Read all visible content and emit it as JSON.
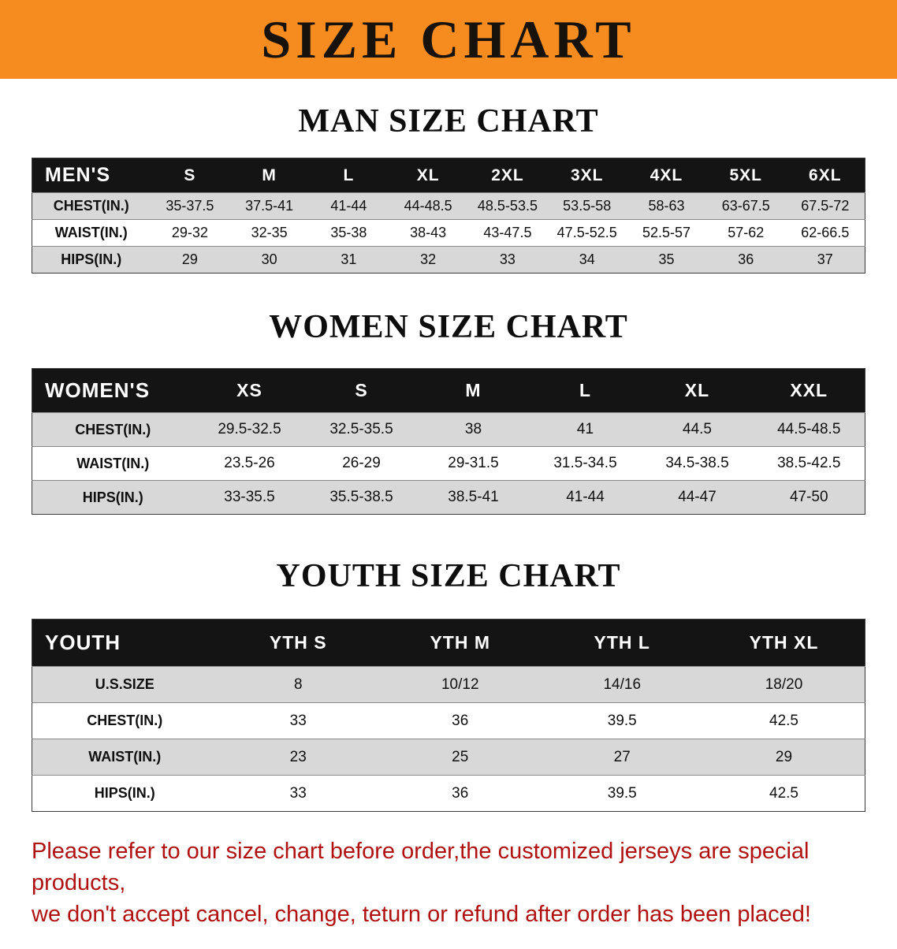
{
  "banner": {
    "title": "SIZE CHART"
  },
  "colors": {
    "banner_bg": "#f68b1f",
    "header_bg": "#141414",
    "row_alt_bg": "#d8d8d8",
    "footer_text": "#b01111"
  },
  "sections": [
    {
      "heading": "MAN SIZE CHART",
      "table": {
        "header": [
          "MEN'S",
          "S",
          "M",
          "L",
          "XL",
          "2XL",
          "3XL",
          "4XL",
          "5XL",
          "6XL"
        ],
        "rows": [
          [
            "CHEST(IN.)",
            "35-37.5",
            "37.5-41",
            "41-44",
            "44-48.5",
            "48.5-53.5",
            "53.5-58",
            "58-63",
            "63-67.5",
            "67.5-72"
          ],
          [
            "WAIST(IN.)",
            "29-32",
            "32-35",
            "35-38",
            "38-43",
            "43-47.5",
            "47.5-52.5",
            "52.5-57",
            "57-62",
            "62-66.5"
          ],
          [
            "HIPS(IN.)",
            "29",
            "30",
            "31",
            "32",
            "33",
            "34",
            "35",
            "36",
            "37"
          ]
        ]
      }
    },
    {
      "heading": "WOMEN SIZE CHART",
      "table": {
        "header": [
          "WOMEN'S",
          "XS",
          "S",
          "M",
          "L",
          "XL",
          "XXL"
        ],
        "rows": [
          [
            "CHEST(IN.)",
            "29.5-32.5",
            "32.5-35.5",
            "38",
            "41",
            "44.5",
            "44.5-48.5"
          ],
          [
            "WAIST(IN.)",
            "23.5-26",
            "26-29",
            "29-31.5",
            "31.5-34.5",
            "34.5-38.5",
            "38.5-42.5"
          ],
          [
            "HIPS(IN.)",
            "33-35.5",
            "35.5-38.5",
            "38.5-41",
            "41-44",
            "44-47",
            "47-50"
          ]
        ]
      }
    },
    {
      "heading": "YOUTH SIZE CHART",
      "table": {
        "header": [
          "YOUTH",
          "YTH S",
          "YTH M",
          "YTH L",
          "YTH XL"
        ],
        "rows": [
          [
            "U.S.SIZE",
            "8",
            "10/12",
            "14/16",
            "18/20"
          ],
          [
            "CHEST(IN.)",
            "33",
            "36",
            "39.5",
            "42.5"
          ],
          [
            "WAIST(IN.)",
            "23",
            "25",
            "27",
            "29"
          ],
          [
            "HIPS(IN.)",
            "33",
            "36",
            "39.5",
            "42.5"
          ]
        ]
      }
    }
  ],
  "footer": {
    "line1": "Please refer to our size chart before order,the customized jerseys are special products,",
    "line2": "we don't accept cancel, change, teturn or refund after order has been placed!"
  }
}
